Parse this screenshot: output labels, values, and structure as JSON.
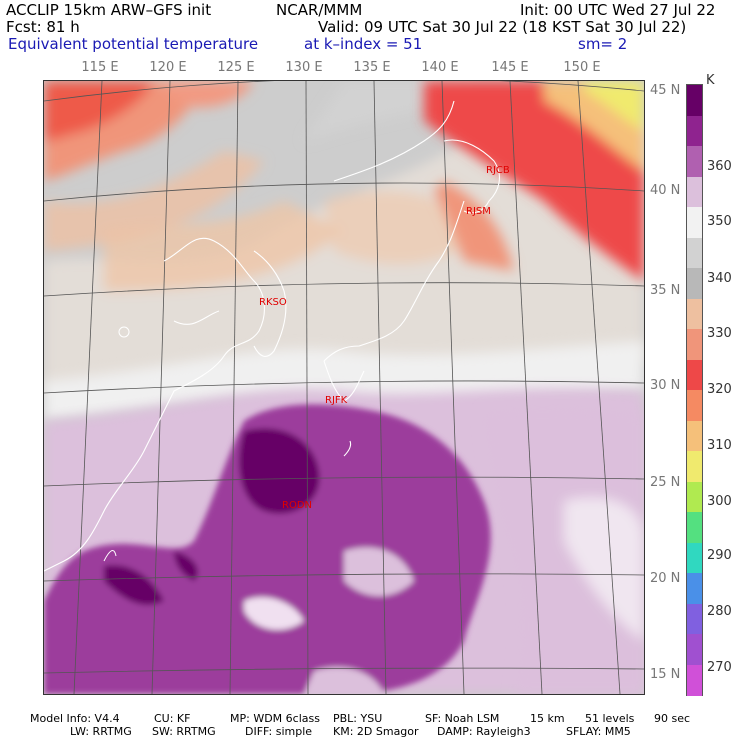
{
  "header": {
    "model": "ACCLIP 15km ARW–GFS init",
    "org": "NCAR/MMM",
    "init": "Init: 00 UTC Wed 27 Jul 22",
    "fcst": "Fcst:   81 h",
    "valid": "Valid: 09 UTC Sat 30 Jul 22 (18 KST Sat 30 Jul 22)",
    "field": "Equivalent potential temperature",
    "level": "at k–index =  51",
    "smooth": "sm= 2"
  },
  "longitude_ticks": [
    "115 E",
    "120 E",
    "125 E",
    "130 E",
    "135 E",
    "140 E",
    "145 E",
    "150 E"
  ],
  "latitude_ticks": [
    "45 N",
    "40 N",
    "35 N",
    "30 N",
    "25 N",
    "20 N",
    "15 N"
  ],
  "stations": [
    "RJCB",
    "RJSM",
    "RKSO",
    "RJFK",
    "RODN"
  ],
  "colorbar": {
    "unit": "K",
    "labels": [
      "360",
      "350",
      "340",
      "330",
      "320",
      "310",
      "300",
      "290",
      "280",
      "270"
    ],
    "colors": [
      "#660066",
      "#8f238f",
      "#b060b0",
      "#dcc0dc",
      "#f2f2f2",
      "#d2d2d2",
      "#b8b8b8",
      "#eec0a0",
      "#f0957a",
      "#ee4848",
      "#f58a62",
      "#f5c07a",
      "#f0ea6e",
      "#b0ea50",
      "#54e080",
      "#30d8c0",
      "#4a90e8",
      "#8060e0",
      "#a050d0",
      "#d050d8"
    ]
  },
  "footer": {
    "line1": [
      "Model Info: V4.4",
      "CU: KF",
      "MP: WDM 6class",
      "PBL: YSU",
      "SF: Noah LSM",
      "15 km",
      "51 levels",
      "90 sec"
    ],
    "line2": [
      "LW: RRTMG",
      "SW: RRTMG",
      "DIFF: simple",
      "KM: 2D Smagor",
      "DAMP: Rayleigh3",
      "SFLAY: MM5"
    ]
  }
}
